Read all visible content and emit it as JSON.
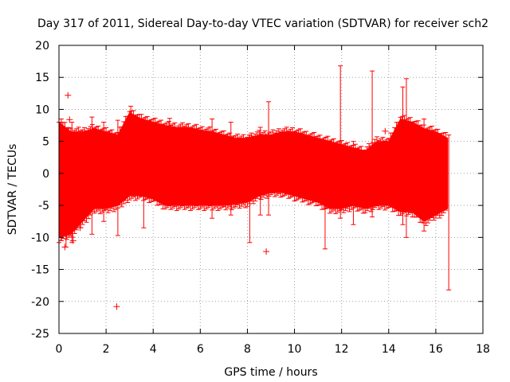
{
  "chart_data": {
    "type": "scatter",
    "title": "Day 317 of 2011, Sidereal Day-to-day VTEC variation (SDTVAR) for receiver sch2",
    "xlabel": "GPS time / hours",
    "ylabel": "SDTVAR / TECUs",
    "xlim": [
      0,
      18
    ],
    "ylim": [
      -25,
      20
    ],
    "xticks": [
      0,
      2,
      4,
      6,
      8,
      10,
      12,
      14,
      16,
      18
    ],
    "yticks": [
      -25,
      -20,
      -15,
      -10,
      -5,
      0,
      5,
      10,
      15,
      20
    ],
    "grid": true,
    "series": [
      {
        "name": "SDTVAR",
        "color": "#ff0000",
        "marker": "plus",
        "errorbars": true,
        "envelope": [
          {
            "x": 0.0,
            "upper": 8.0,
            "lower": -10.0
          },
          {
            "x": 0.5,
            "upper": 6.5,
            "lower": -9.5
          },
          {
            "x": 1.0,
            "upper": 6.5,
            "lower": -7.5
          },
          {
            "x": 1.5,
            "upper": 7.0,
            "lower": -5.5
          },
          {
            "x": 2.0,
            "upper": 6.5,
            "lower": -5.5
          },
          {
            "x": 2.5,
            "upper": 6.0,
            "lower": -5.0
          },
          {
            "x": 3.0,
            "upper": 9.5,
            "lower": -3.5
          },
          {
            "x": 3.5,
            "upper": 8.5,
            "lower": -3.5
          },
          {
            "x": 4.0,
            "upper": 8.0,
            "lower": -4.0
          },
          {
            "x": 4.5,
            "upper": 7.5,
            "lower": -5.0
          },
          {
            "x": 5.0,
            "upper": 7.2,
            "lower": -5.0
          },
          {
            "x": 5.5,
            "upper": 7.2,
            "lower": -5.0
          },
          {
            "x": 6.0,
            "upper": 6.8,
            "lower": -5.0
          },
          {
            "x": 6.5,
            "upper": 6.5,
            "lower": -5.0
          },
          {
            "x": 7.0,
            "upper": 6.0,
            "lower": -5.0
          },
          {
            "x": 7.5,
            "upper": 5.5,
            "lower": -4.8
          },
          {
            "x": 8.0,
            "upper": 5.5,
            "lower": -4.5
          },
          {
            "x": 8.5,
            "upper": 6.0,
            "lower": -3.5
          },
          {
            "x": 9.0,
            "upper": 6.0,
            "lower": -3.0
          },
          {
            "x": 9.5,
            "upper": 6.5,
            "lower": -3.0
          },
          {
            "x": 10.0,
            "upper": 6.5,
            "lower": -3.5
          },
          {
            "x": 10.5,
            "upper": 6.0,
            "lower": -4.0
          },
          {
            "x": 11.0,
            "upper": 5.5,
            "lower": -4.5
          },
          {
            "x": 11.5,
            "upper": 5.0,
            "lower": -5.5
          },
          {
            "x": 12.0,
            "upper": 4.5,
            "lower": -5.5
          },
          {
            "x": 12.5,
            "upper": 4.0,
            "lower": -5.0
          },
          {
            "x": 13.0,
            "upper": 3.5,
            "lower": -5.5
          },
          {
            "x": 13.5,
            "upper": 5.0,
            "lower": -5.0
          },
          {
            "x": 14.0,
            "upper": 5.0,
            "lower": -5.0
          },
          {
            "x": 14.5,
            "upper": 8.5,
            "lower": -6.0
          },
          {
            "x": 15.0,
            "upper": 8.0,
            "lower": -6.0
          },
          {
            "x": 15.5,
            "upper": 7.0,
            "lower": -7.5
          },
          {
            "x": 16.0,
            "upper": 6.5,
            "lower": -6.5
          },
          {
            "x": 16.5,
            "upper": 5.5,
            "lower": -5.5
          }
        ],
        "outliers": [
          {
            "x": 0.38,
            "y": 12.2
          },
          {
            "x": 0.45,
            "y": 8.4
          },
          {
            "x": 2.45,
            "y": -20.8
          },
          {
            "x": 8.8,
            "y": -12.2
          },
          {
            "x": 13.85,
            "y": 6.6
          },
          {
            "x": 0.25,
            "y": -11.5
          },
          {
            "x": 0.6,
            "y": -10.5
          },
          {
            "x": 0.9,
            "y": -8.5
          }
        ],
        "spikes": [
          {
            "x": 0.1,
            "high": 8.5,
            "low": -10.5
          },
          {
            "x": 0.3,
            "high": 7.0,
            "low": -11.5
          },
          {
            "x": 0.55,
            "high": 8.0,
            "low": -10.8
          },
          {
            "x": 1.4,
            "high": 8.8,
            "low": -9.5
          },
          {
            "x": 1.9,
            "high": 8.0,
            "low": -7.5
          },
          {
            "x": 2.5,
            "high": 8.3,
            "low": -9.7
          },
          {
            "x": 3.05,
            "high": 10.5,
            "low": -2.5
          },
          {
            "x": 3.6,
            "high": 8.0,
            "low": -8.5
          },
          {
            "x": 4.7,
            "high": 8.6,
            "low": -5.0
          },
          {
            "x": 6.5,
            "high": 8.5,
            "low": -7.0
          },
          {
            "x": 7.3,
            "high": 8.0,
            "low": -6.5
          },
          {
            "x": 8.1,
            "high": 6.0,
            "low": -10.8
          },
          {
            "x": 8.55,
            "high": 7.2,
            "low": -6.5
          },
          {
            "x": 8.9,
            "high": 11.2,
            "low": -6.5
          },
          {
            "x": 11.3,
            "high": 5.0,
            "low": -11.8
          },
          {
            "x": 11.95,
            "high": 16.8,
            "low": -7.0
          },
          {
            "x": 12.5,
            "high": 5.0,
            "low": -8.0
          },
          {
            "x": 13.3,
            "high": 16.0,
            "low": -6.8
          },
          {
            "x": 14.6,
            "high": 13.5,
            "low": -8.0
          },
          {
            "x": 14.75,
            "high": 14.8,
            "low": -10.0
          },
          {
            "x": 15.5,
            "high": 8.5,
            "low": -9.0
          },
          {
            "x": 16.55,
            "high": 6.0,
            "low": -18.2
          }
        ]
      }
    ]
  }
}
